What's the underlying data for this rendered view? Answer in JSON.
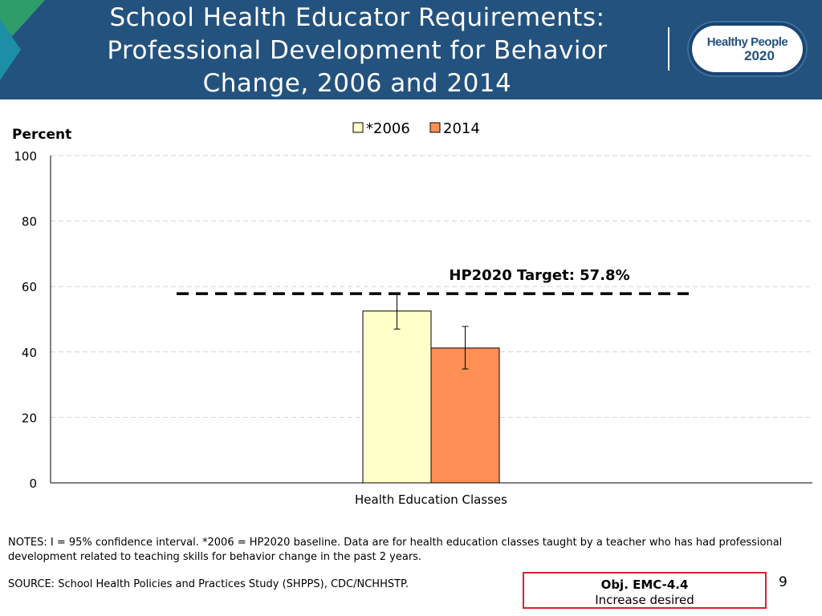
{
  "header": {
    "title": "School Health Educator Requirements: Professional Development for Behavior Change, 2006 and 2014",
    "logo_line1": "Healthy People",
    "logo_line2": "2020"
  },
  "colors": {
    "header_bg": "#23527f",
    "bar_2006": "#ffffc9",
    "bar_2014": "#ff8f55",
    "accent_box": "#d9232f"
  },
  "chart_data": {
    "type": "bar",
    "ylabel": "Percent",
    "ylim": [
      0,
      100
    ],
    "yticks": [
      0,
      20,
      40,
      60,
      80,
      100
    ],
    "categories": [
      "Health Education Classes"
    ],
    "series": [
      {
        "name": "*2006",
        "values": [
          52.5
        ],
        "ci_low": [
          47.0
        ],
        "ci_high": [
          58.0
        ],
        "color": "#ffffc9"
      },
      {
        "name": "2014",
        "values": [
          41.2
        ],
        "ci_low": [
          34.8
        ],
        "ci_high": [
          47.8
        ],
        "color": "#ff8f55"
      }
    ],
    "target": {
      "value": 57.8,
      "label": "HP2020 Target: 57.8%"
    },
    "legend_position": "top-center",
    "grid": true
  },
  "notes": "NOTES: I = 95% confidence interval. *2006 = HP2020 baseline.  Data are for health education classes taught by a teacher who has had professional development related to teaching skills for behavior change in the past 2 years.",
  "source": "SOURCE: School Health Policies and Practices Study (SHPPS), CDC/NCHHSTP.",
  "objective": {
    "code": "Obj. EMC-4.4",
    "desc": "Increase desired"
  },
  "page_number": "9"
}
